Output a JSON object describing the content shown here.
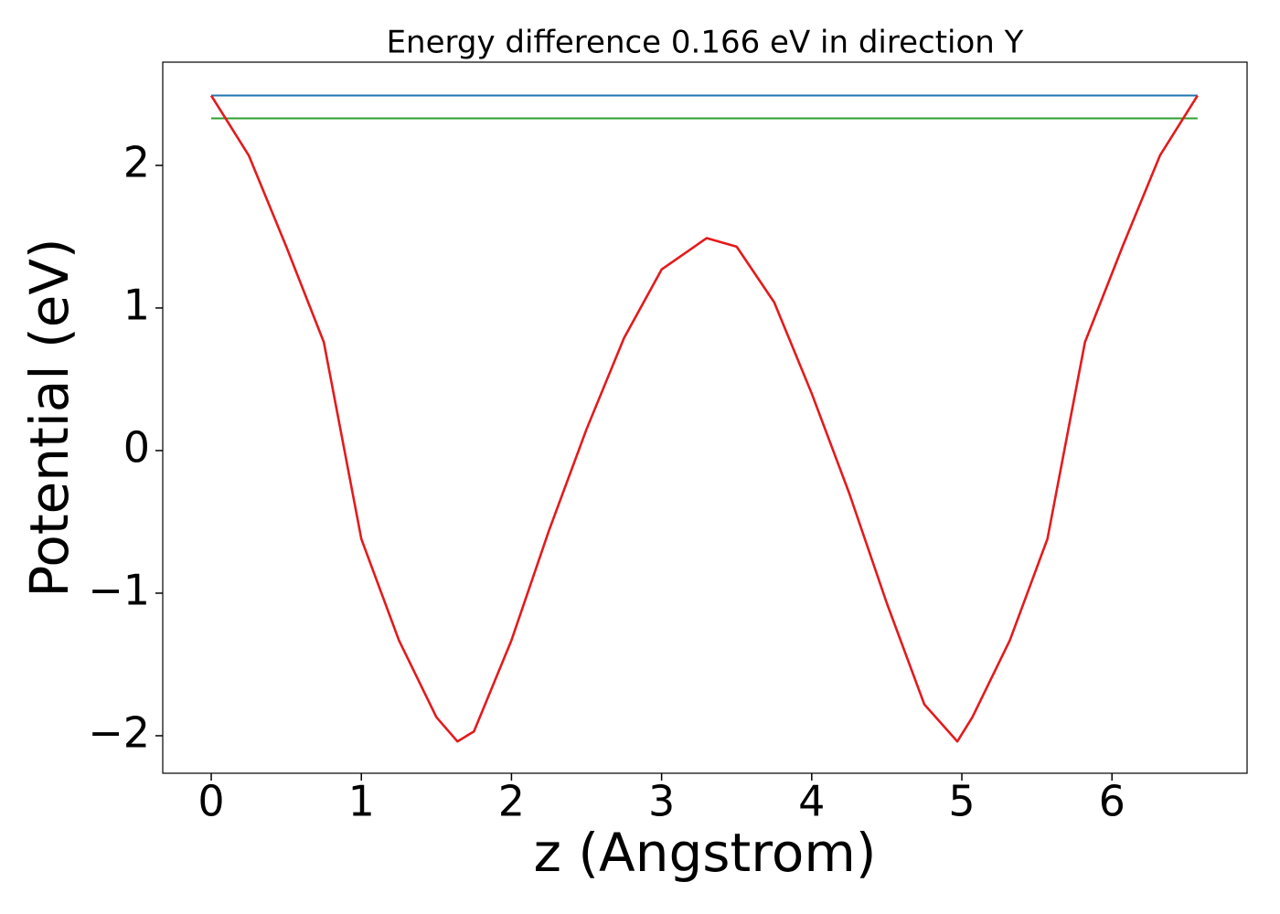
{
  "chart_data": {
    "type": "line",
    "title": "Energy difference 0.166 eV in direction Y",
    "xlabel": "z (Angstrom)",
    "ylabel": "Potential (eV)",
    "xlim": [
      -0.323,
      6.9
    ],
    "ylim": [
      -2.263,
      2.724
    ],
    "xticks": [
      0,
      1,
      2,
      3,
      4,
      5,
      6
    ],
    "yticks": [
      {
        "value": -2,
        "label": "−2"
      },
      {
        "value": -1,
        "label": "−1"
      },
      0,
      1,
      2
    ],
    "grid": false,
    "series": [
      {
        "color": "#1f77b4",
        "x": [
          0,
          6.57
        ],
        "values": [
          2.49,
          2.49
        ]
      },
      {
        "color": "#2ca02c",
        "x": [
          0,
          6.57
        ],
        "values": [
          2.33,
          2.33
        ]
      },
      {
        "color": "#e41a1c",
        "x": [
          0,
          0.25,
          0.5,
          0.75,
          1.0,
          1.25,
          1.5,
          1.64,
          1.75,
          2.0,
          2.25,
          2.5,
          2.75,
          3.0,
          3.3,
          3.5,
          3.75,
          4.0,
          4.25,
          4.5,
          4.75,
          4.97,
          5.07,
          5.32,
          5.57,
          5.82,
          6.07,
          6.32,
          6.57
        ],
        "values": [
          2.49,
          2.07,
          1.43,
          0.76,
          -0.62,
          -1.33,
          -1.87,
          -2.04,
          -1.97,
          -1.33,
          -0.56,
          0.15,
          0.79,
          1.27,
          1.49,
          1.43,
          1.04,
          0.4,
          -0.3,
          -1.07,
          -1.78,
          -2.04,
          -1.87,
          -1.33,
          -0.62,
          0.76,
          1.43,
          2.07,
          2.49
        ]
      }
    ]
  }
}
